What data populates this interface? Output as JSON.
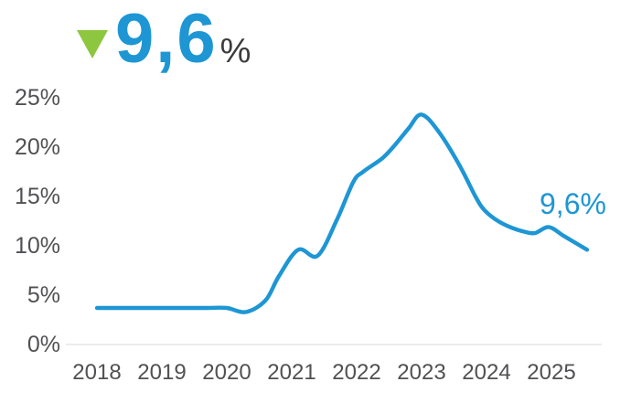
{
  "headline": {
    "value": "9,6",
    "percent_sign": "%",
    "trend_direction": "down",
    "triangle_color": "#8DC63F",
    "value_color": "#1E96D4",
    "percent_color": "#3C3C3C"
  },
  "chart_data": {
    "type": "line",
    "title": "",
    "xlabel": "",
    "ylabel": "",
    "x_tick_labels": [
      "2018",
      "2019",
      "2020",
      "2021",
      "2022",
      "2023",
      "2024",
      "2025"
    ],
    "x_tick_values": [
      2018,
      2019,
      2020,
      2021,
      2022,
      2023,
      2024,
      2025
    ],
    "y_tick_labels": [
      "25%",
      "20%",
      "15%",
      "10%",
      "5%",
      "0%"
    ],
    "y_tick_values": [
      25,
      20,
      15,
      10,
      5,
      0
    ],
    "xlim": [
      2018,
      2025.7
    ],
    "ylim": [
      0,
      25
    ],
    "grid": "single horizontal baseline at 0% only",
    "legend": "none",
    "line_color": "#1E96D4",
    "series": [
      {
        "name": "rate_percent",
        "points": [
          [
            2018.0,
            3.7
          ],
          [
            2018.3,
            3.7
          ],
          [
            2018.6,
            3.7
          ],
          [
            2019.0,
            3.7
          ],
          [
            2019.4,
            3.7
          ],
          [
            2019.7,
            3.7
          ],
          [
            2020.0,
            3.7
          ],
          [
            2020.3,
            3.3
          ],
          [
            2020.6,
            4.5
          ],
          [
            2020.8,
            6.9
          ],
          [
            2021.1,
            9.6
          ],
          [
            2021.4,
            9.0
          ],
          [
            2021.7,
            12.7
          ],
          [
            2021.95,
            16.5
          ],
          [
            2022.1,
            17.5
          ],
          [
            2022.4,
            18.9
          ],
          [
            2022.6,
            20.3
          ],
          [
            2022.8,
            21.9
          ],
          [
            2023.0,
            23.3
          ],
          [
            2023.27,
            21.5
          ],
          [
            2023.58,
            18.2
          ],
          [
            2023.83,
            15.0
          ],
          [
            2023.97,
            13.6
          ],
          [
            2024.18,
            12.5
          ],
          [
            2024.4,
            11.8
          ],
          [
            2024.6,
            11.4
          ],
          [
            2024.75,
            11.3
          ],
          [
            2024.96,
            11.9
          ],
          [
            2025.19,
            11.0
          ],
          [
            2025.42,
            10.1
          ],
          [
            2025.55,
            9.6
          ]
        ]
      }
    ],
    "end_label": {
      "text": "9,6%",
      "color": "#1E96D4"
    }
  },
  "colors": {
    "background": "#FFFFFF",
    "axis_text": "#515154",
    "baseline_line": "#ECECEC"
  }
}
